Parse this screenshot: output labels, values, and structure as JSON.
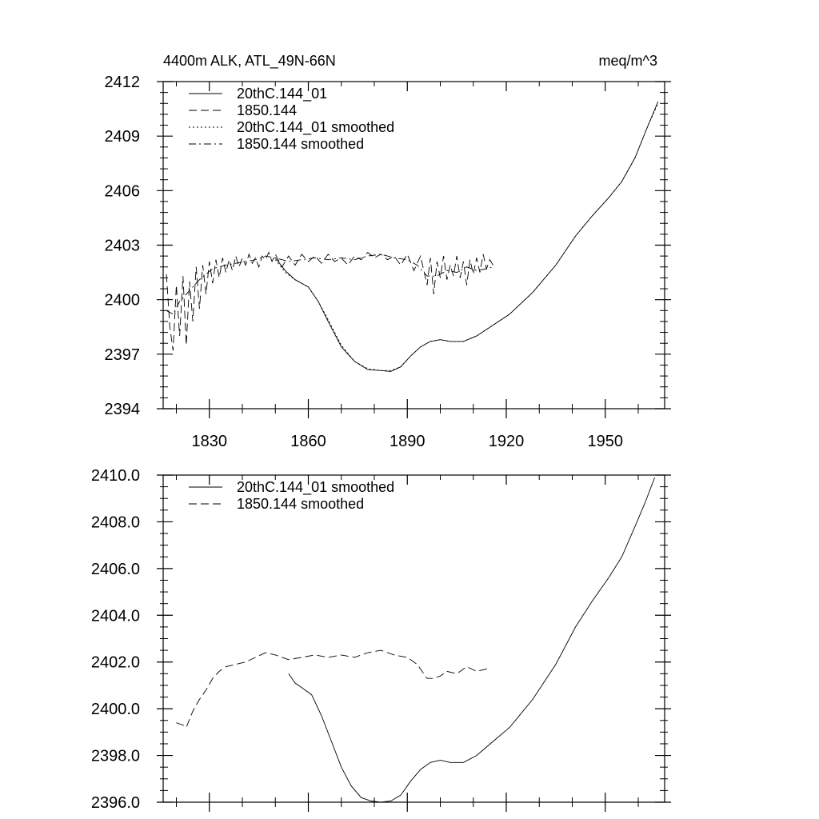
{
  "chart_data": [
    {
      "type": "line",
      "title_left": "4400m ALK, ATL_49N-66N",
      "title_right": "meq/m^3",
      "xlabel": "",
      "ylabel": "",
      "xlim": [
        1816,
        1968
      ],
      "ylim": [
        2394,
        2412
      ],
      "x_ticks": [
        1830,
        1860,
        1890,
        1920,
        1950
      ],
      "x_tick_labels": [
        "1830",
        "1860",
        "1890",
        "1920",
        "1950"
      ],
      "y_ticks": [
        2394,
        2397,
        2400,
        2403,
        2406,
        2409,
        2412
      ],
      "y_tick_labels": [
        "2394",
        "2397",
        "2400",
        "2403",
        "2406",
        "2409",
        "2412"
      ],
      "legend_position": "top-left",
      "series": [
        {
          "name": "20thC.144_01",
          "dash": "solid",
          "x": [
            1850,
            1853,
            1856,
            1860,
            1863,
            1866,
            1870,
            1874,
            1878,
            1882,
            1885,
            1888,
            1891,
            1894,
            1897,
            1900,
            1903,
            1907,
            1911,
            1916,
            1921,
            1928,
            1935,
            1941,
            1946,
            1951,
            1955,
            1959,
            1963,
            1966
          ],
          "y": [
            2402.3,
            2401.6,
            2401.1,
            2400.7,
            2399.9,
            2398.8,
            2397.4,
            2396.6,
            2396.15,
            2396.1,
            2396.05,
            2396.3,
            2396.9,
            2397.4,
            2397.7,
            2397.8,
            2397.7,
            2397.7,
            2398.0,
            2398.6,
            2399.2,
            2400.4,
            2401.9,
            2403.5,
            2404.6,
            2405.6,
            2406.5,
            2407.8,
            2409.6,
            2410.9
          ]
        },
        {
          "name": "1850.144",
          "dash": "dashed",
          "x": [
            1817,
            1818,
            1819,
            1820,
            1821,
            1822,
            1823,
            1824,
            1825,
            1826,
            1827,
            1828,
            1829,
            1830,
            1831,
            1832,
            1833,
            1834,
            1835,
            1836,
            1837,
            1838,
            1839,
            1840,
            1841,
            1842,
            1843,
            1844,
            1845,
            1846,
            1847,
            1848,
            1849,
            1850,
            1852,
            1854,
            1856,
            1858,
            1860,
            1862,
            1864,
            1866,
            1868,
            1870,
            1872,
            1874,
            1876,
            1878,
            1880,
            1882,
            1884,
            1886,
            1888,
            1890,
            1892,
            1894,
            1896,
            1897,
            1898,
            1899,
            1900,
            1901,
            1902,
            1903,
            1904,
            1905,
            1906,
            1907,
            1908,
            1909,
            1910,
            1911,
            1912,
            1913,
            1914,
            1915,
            1916
          ],
          "y": [
            2401.4,
            2398.5,
            2397.2,
            2400.8,
            2398.0,
            2401.3,
            2397.5,
            2401.0,
            2398.8,
            2401.8,
            2399.5,
            2401.9,
            2400.3,
            2402.1,
            2400.9,
            2402.2,
            2401.2,
            2402.3,
            2401.5,
            2402.2,
            2401.6,
            2402.4,
            2401.8,
            2402.3,
            2401.9,
            2402.5,
            2402.0,
            2402.3,
            2401.8,
            2402.4,
            2402.2,
            2402.6,
            2402.1,
            2402.5,
            2401.8,
            2402.4,
            2401.9,
            2402.5,
            2402.1,
            2402.4,
            2402.0,
            2402.5,
            2402.1,
            2402.3,
            2401.9,
            2402.4,
            2402.2,
            2402.6,
            2402.3,
            2402.5,
            2402.2,
            2402.4,
            2401.9,
            2402.5,
            2401.6,
            2402.4,
            2400.8,
            2402.3,
            2400.3,
            2402.1,
            2401.2,
            2402.4,
            2401.1,
            2401.9,
            2401.3,
            2402.4,
            2401.2,
            2402.1,
            2400.8,
            2402.2,
            2401.4,
            2402.3,
            2401.5,
            2402.5,
            2401.7,
            2402.2,
            2401.9
          ]
        },
        {
          "name": "20thC.144_01 smoothed",
          "dash": "dotted",
          "x": [
            1850,
            1853,
            1856,
            1860,
            1863,
            1866,
            1870,
            1874,
            1878,
            1882,
            1885,
            1888,
            1891,
            1894,
            1897,
            1900,
            1903,
            1907,
            1911,
            1916,
            1921,
            1928,
            1935,
            1941,
            1946,
            1951,
            1955,
            1959,
            1963,
            1966
          ],
          "y": [
            2402.2,
            2401.5,
            2401.1,
            2400.7,
            2399.9,
            2398.9,
            2397.5,
            2396.6,
            2396.2,
            2396.1,
            2396.1,
            2396.3,
            2396.9,
            2397.4,
            2397.7,
            2397.8,
            2397.7,
            2397.7,
            2398.0,
            2398.6,
            2399.2,
            2400.4,
            2401.9,
            2403.5,
            2404.6,
            2405.6,
            2406.5,
            2407.8,
            2409.6,
            2410.8
          ]
        },
        {
          "name": "1850.144 smoothed",
          "dash": "dashdot",
          "x": [
            1817,
            1819,
            1821,
            1823,
            1825,
            1827,
            1829,
            1831,
            1833,
            1835,
            1838,
            1841,
            1844,
            1847,
            1850,
            1854,
            1858,
            1862,
            1866,
            1870,
            1874,
            1878,
            1882,
            1886,
            1890,
            1893,
            1896,
            1899,
            1902,
            1905,
            1908,
            1911,
            1914,
            1916
          ],
          "y": [
            2399.4,
            2399.2,
            2399.9,
            2400.3,
            2400.7,
            2401.1,
            2401.4,
            2401.7,
            2401.8,
            2401.9,
            2402.0,
            2402.1,
            2402.2,
            2402.4,
            2402.3,
            2402.1,
            2402.2,
            2402.3,
            2402.2,
            2402.3,
            2402.2,
            2402.4,
            2402.5,
            2402.3,
            2402.2,
            2401.9,
            2401.3,
            2401.3,
            2401.6,
            2401.5,
            2401.8,
            2401.6,
            2401.7,
            2401.8
          ]
        }
      ]
    },
    {
      "type": "line",
      "title": "",
      "xlabel": "",
      "ylabel": "",
      "xlim": [
        1816,
        1968
      ],
      "ylim": [
        2396.0,
        2410.0
      ],
      "x_ticks": [
        1830,
        1860,
        1890,
        1920,
        1950
      ],
      "y_ticks": [
        2396.0,
        2398.0,
        2400.0,
        2402.0,
        2404.0,
        2406.0,
        2408.0,
        2410.0
      ],
      "y_tick_labels": [
        "2396.0",
        "2398.0",
        "2400.0",
        "2402.0",
        "2404.0",
        "2406.0",
        "2408.0",
        "2410.0"
      ],
      "legend_position": "top-left",
      "series": [
        {
          "name": "20thC.144_01 smoothed",
          "dash": "solid",
          "x": [
            1854,
            1856,
            1858,
            1861,
            1864,
            1867,
            1870,
            1873,
            1876,
            1879,
            1882,
            1885,
            1888,
            1891,
            1894,
            1897,
            1900,
            1903,
            1907,
            1911,
            1916,
            1921,
            1928,
            1935,
            1941,
            1946,
            1951,
            1955,
            1959,
            1962,
            1965
          ],
          "y": [
            2401.5,
            2401.1,
            2400.9,
            2400.6,
            2399.7,
            2398.6,
            2397.5,
            2396.7,
            2396.2,
            2396.05,
            2396.0,
            2396.05,
            2396.3,
            2396.9,
            2397.4,
            2397.7,
            2397.8,
            2397.7,
            2397.7,
            2398.0,
            2398.6,
            2399.2,
            2400.4,
            2401.9,
            2403.5,
            2404.6,
            2405.6,
            2406.5,
            2407.8,
            2408.8,
            2409.9
          ]
        },
        {
          "name": "1850.144 smoothed",
          "dash": "dashed",
          "x": [
            1820,
            1822,
            1823,
            1825,
            1827,
            1829,
            1831,
            1833,
            1835,
            1838,
            1841,
            1844,
            1847,
            1850,
            1854,
            1858,
            1862,
            1866,
            1870,
            1874,
            1878,
            1882,
            1886,
            1890,
            1893,
            1896,
            1898,
            1900,
            1902,
            1905,
            1908,
            1911,
            1914,
            1915
          ],
          "y": [
            2399.4,
            2399.3,
            2399.2,
            2399.9,
            2400.4,
            2400.8,
            2401.3,
            2401.6,
            2401.8,
            2401.9,
            2402.0,
            2402.2,
            2402.4,
            2402.3,
            2402.1,
            2402.2,
            2402.3,
            2402.2,
            2402.3,
            2402.2,
            2402.4,
            2402.5,
            2402.3,
            2402.2,
            2401.9,
            2401.3,
            2401.3,
            2401.4,
            2401.6,
            2401.5,
            2401.8,
            2401.6,
            2401.7,
            2401.8
          ]
        }
      ]
    }
  ]
}
